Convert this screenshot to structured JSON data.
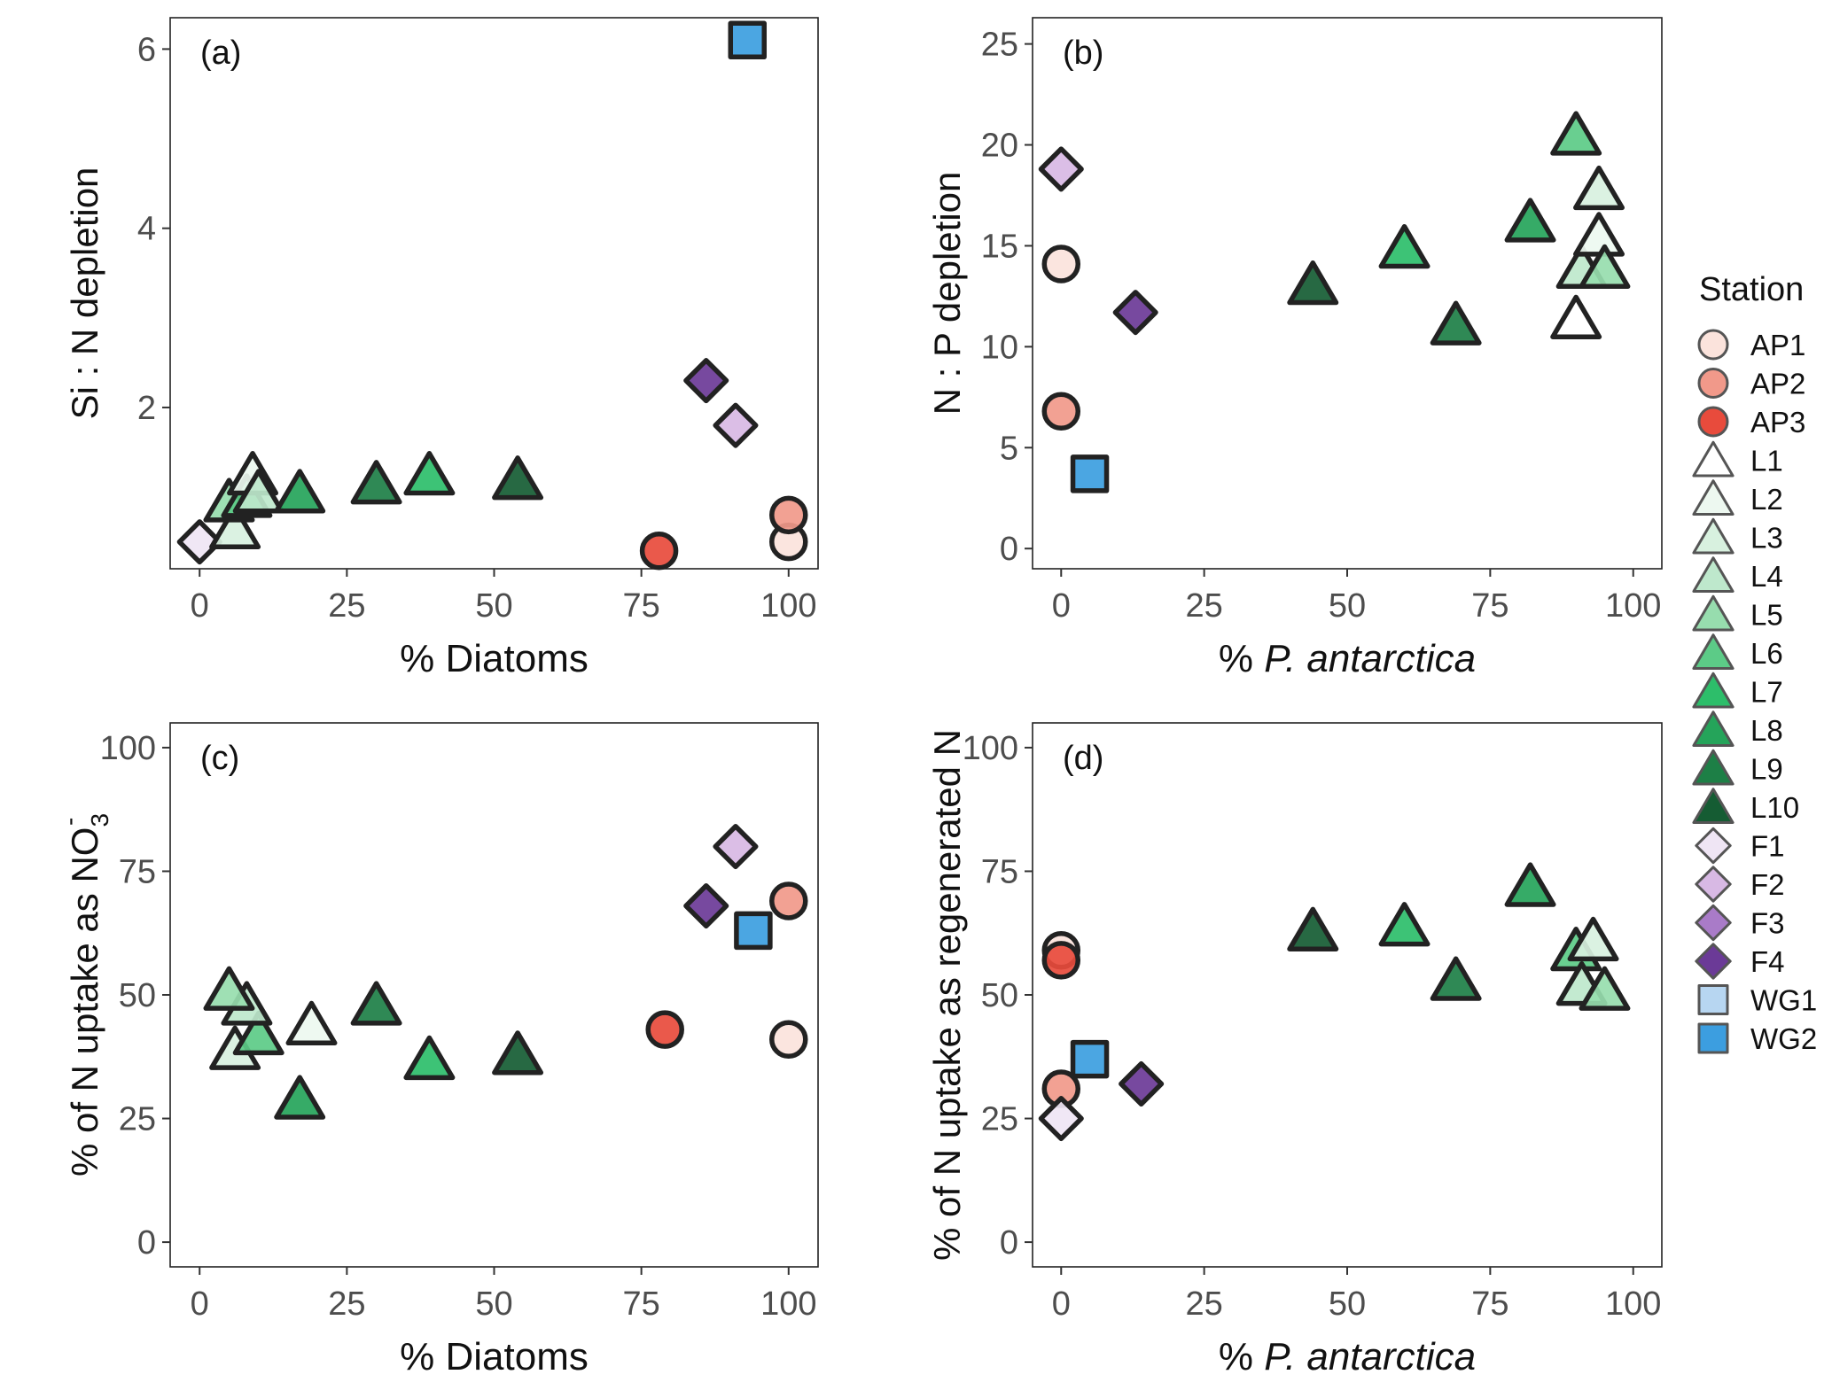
{
  "legend": {
    "title": "Station",
    "items": [
      {
        "label": "AP1",
        "shape": "circle",
        "color": "#FBE3DC"
      },
      {
        "label": "AP2",
        "shape": "circle",
        "color": "#F1998A"
      },
      {
        "label": "AP3",
        "shape": "circle",
        "color": "#E84B3C"
      },
      {
        "label": "L1",
        "shape": "triangle",
        "color": "#FFFFFF"
      },
      {
        "label": "L2",
        "shape": "triangle",
        "color": "#EDF8F0"
      },
      {
        "label": "L3",
        "shape": "triangle",
        "color": "#D8F1DF"
      },
      {
        "label": "L4",
        "shape": "triangle",
        "color": "#BEE8CC"
      },
      {
        "label": "L5",
        "shape": "triangle",
        "color": "#97DDAE"
      },
      {
        "label": "L6",
        "shape": "triangle",
        "color": "#5CCB87"
      },
      {
        "label": "L7",
        "shape": "triangle",
        "color": "#2DBE6A"
      },
      {
        "label": "L8",
        "shape": "triangle",
        "color": "#25A45A"
      },
      {
        "label": "L9",
        "shape": "triangle",
        "color": "#1D7F46"
      },
      {
        "label": "L10",
        "shape": "triangle",
        "color": "#155C33"
      },
      {
        "label": "F1",
        "shape": "diamond",
        "color": "#EFE5F4"
      },
      {
        "label": "F2",
        "shape": "diamond",
        "color": "#D8B9E4"
      },
      {
        "label": "F3",
        "shape": "diamond",
        "color": "#A97BC8"
      },
      {
        "label": "F4",
        "shape": "diamond",
        "color": "#6B3A97"
      },
      {
        "label": "WG1",
        "shape": "square",
        "color": "#B7D6F1"
      },
      {
        "label": "WG2",
        "shape": "square",
        "color": "#3C9EE0"
      }
    ]
  },
  "chart_data": [
    {
      "type": "scatter",
      "panel_label": "(a)",
      "xlabel": "% Diatoms",
      "ylabel": "Si : N depletion",
      "xlim": [
        -5,
        105
      ],
      "ylim": [
        0.2,
        6.35
      ],
      "xticks": [
        0,
        25,
        50,
        75,
        100
      ],
      "yticks": [
        2,
        4,
        6
      ],
      "points": [
        {
          "station": "F1",
          "x": 0,
          "y": 0.5
        },
        {
          "station": "L3",
          "x": 6,
          "y": 0.65
        },
        {
          "station": "L5",
          "x": 5,
          "y": 0.95
        },
        {
          "station": "L6",
          "x": 8,
          "y": 1.0
        },
        {
          "station": "L2",
          "x": 9,
          "y": 1.25
        },
        {
          "station": "L4",
          "x": 10,
          "y": 1.05
        },
        {
          "station": "L8",
          "x": 17,
          "y": 1.05
        },
        {
          "station": "L9",
          "x": 30,
          "y": 1.15
        },
        {
          "station": "L7",
          "x": 39,
          "y": 1.25
        },
        {
          "station": "L10",
          "x": 54,
          "y": 1.2
        },
        {
          "station": "AP3",
          "x": 78,
          "y": 0.4
        },
        {
          "station": "AP1",
          "x": 100,
          "y": 0.5
        },
        {
          "station": "AP2",
          "x": 100,
          "y": 0.8
        },
        {
          "station": "F4",
          "x": 86,
          "y": 2.3
        },
        {
          "station": "F2",
          "x": 91,
          "y": 1.8
        },
        {
          "station": "WG2",
          "x": 93,
          "y": 6.1
        }
      ]
    },
    {
      "type": "scatter",
      "panel_label": "(b)",
      "xlabel_prefix": "% ",
      "xlabel_italic": "P. antarctica",
      "ylabel": "N : P depletion",
      "xlim": [
        -5,
        105
      ],
      "ylim": [
        -1,
        26.3
      ],
      "xticks": [
        0,
        25,
        50,
        75,
        100
      ],
      "yticks": [
        0,
        5,
        10,
        15,
        20,
        25
      ],
      "points": [
        {
          "station": "F2",
          "x": 0,
          "y": 18.8
        },
        {
          "station": "AP1",
          "x": 0,
          "y": 14.1
        },
        {
          "station": "AP2",
          "x": 0,
          "y": 6.8
        },
        {
          "station": "WG2",
          "x": 5,
          "y": 3.7
        },
        {
          "station": "F4",
          "x": 13,
          "y": 11.7
        },
        {
          "station": "L10",
          "x": 44,
          "y": 13.1
        },
        {
          "station": "L7",
          "x": 60,
          "y": 14.9
        },
        {
          "station": "L9",
          "x": 69,
          "y": 11.1
        },
        {
          "station": "L8",
          "x": 82,
          "y": 16.2
        },
        {
          "station": "L6",
          "x": 90,
          "y": 20.5
        },
        {
          "station": "L1",
          "x": 90,
          "y": 11.4
        },
        {
          "station": "L4",
          "x": 91,
          "y": 13.9
        },
        {
          "station": "L3",
          "x": 94,
          "y": 17.8
        },
        {
          "station": "L2",
          "x": 94,
          "y": 15.5
        },
        {
          "station": "L5",
          "x": 95,
          "y": 13.9
        }
      ]
    },
    {
      "type": "scatter",
      "panel_label": "(c)",
      "xlabel": "% Diatoms",
      "ylabel_prefix": "% of N uptake as NO",
      "ylabel_sub": "3",
      "ylabel_sup": "-",
      "xlim": [
        -5,
        105
      ],
      "ylim": [
        -5,
        105
      ],
      "xticks": [
        0,
        25,
        50,
        75,
        100
      ],
      "yticks": [
        0,
        25,
        50,
        75,
        100
      ],
      "points": [
        {
          "station": "L3",
          "x": 6,
          "y": 39
        },
        {
          "station": "L6",
          "x": 10,
          "y": 42
        },
        {
          "station": "L4",
          "x": 8,
          "y": 48
        },
        {
          "station": "L5",
          "x": 5,
          "y": 51
        },
        {
          "station": "L2",
          "x": 19,
          "y": 44
        },
        {
          "station": "L8",
          "x": 17,
          "y": 29
        },
        {
          "station": "L9",
          "x": 30,
          "y": 48
        },
        {
          "station": "L7",
          "x": 39,
          "y": 37
        },
        {
          "station": "L10",
          "x": 54,
          "y": 38
        },
        {
          "station": "AP3",
          "x": 79,
          "y": 43
        },
        {
          "station": "AP1",
          "x": 100,
          "y": 41
        },
        {
          "station": "AP2",
          "x": 100,
          "y": 69
        },
        {
          "station": "F2",
          "x": 91,
          "y": 80
        },
        {
          "station": "F4",
          "x": 86,
          "y": 68
        },
        {
          "station": "WG2",
          "x": 94,
          "y": 63
        }
      ]
    },
    {
      "type": "scatter",
      "panel_label": "(d)",
      "xlabel_prefix": "% ",
      "xlabel_italic": "P. antarctica",
      "ylabel": "% of N uptake as regenerated N",
      "xlim": [
        -5,
        105
      ],
      "ylim": [
        -5,
        105
      ],
      "xticks": [
        0,
        25,
        50,
        75,
        100
      ],
      "yticks": [
        0,
        25,
        50,
        75,
        100
      ],
      "points": [
        {
          "station": "AP1",
          "x": 0,
          "y": 59
        },
        {
          "station": "AP3",
          "x": 0,
          "y": 57
        },
        {
          "station": "AP2",
          "x": 0,
          "y": 31
        },
        {
          "station": "F1",
          "x": 0,
          "y": 25
        },
        {
          "station": "WG2",
          "x": 5,
          "y": 37
        },
        {
          "station": "F4",
          "x": 14,
          "y": 32
        },
        {
          "station": "L10",
          "x": 44,
          "y": 63
        },
        {
          "station": "L7",
          "x": 60,
          "y": 64
        },
        {
          "station": "L9",
          "x": 69,
          "y": 53
        },
        {
          "station": "L8",
          "x": 82,
          "y": 72
        },
        {
          "station": "L6",
          "x": 90,
          "y": 59
        },
        {
          "station": "L4",
          "x": 91,
          "y": 52
        },
        {
          "station": "L3",
          "x": 93,
          "y": 61
        },
        {
          "station": "L5",
          "x": 95,
          "y": 51
        }
      ]
    }
  ]
}
